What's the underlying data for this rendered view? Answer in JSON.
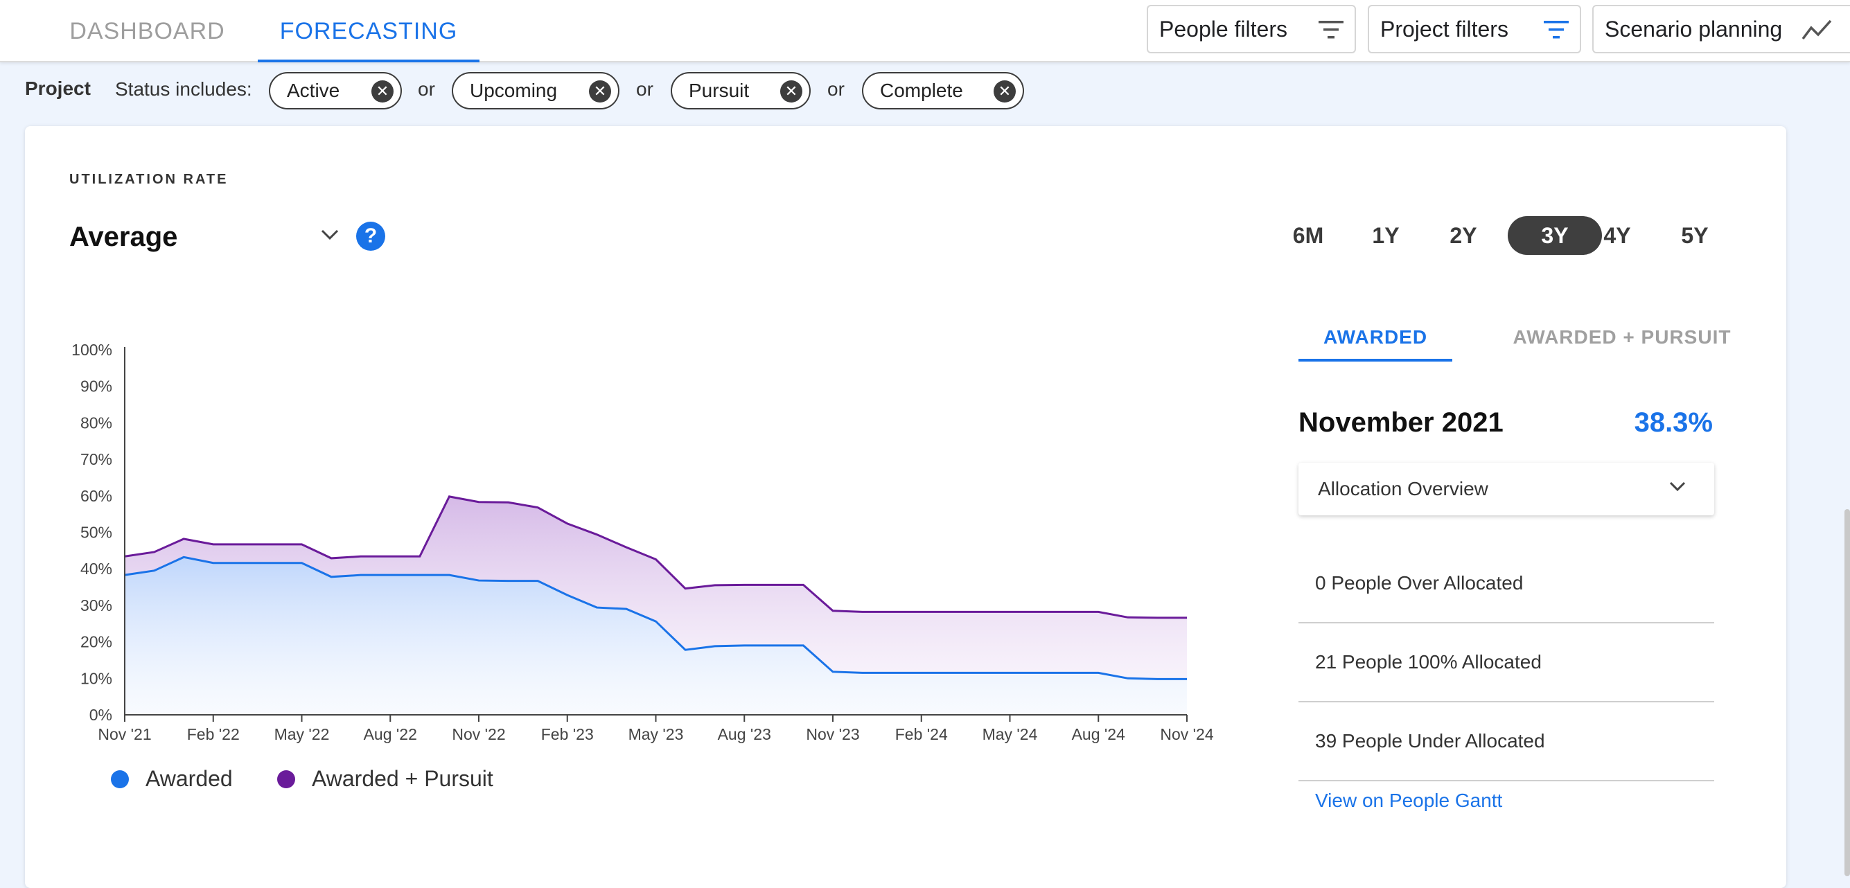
{
  "tabs": [
    {
      "label": "DASHBOARD",
      "active": false
    },
    {
      "label": "FORECASTING",
      "active": true
    }
  ],
  "filters": {
    "people": {
      "label": "People filters",
      "icon": "filter-icon"
    },
    "project": {
      "label": "Project filters",
      "icon": "filter-icon",
      "color": "#1a73e8"
    },
    "scenario": {
      "label": "Scenario planning",
      "icon": "trend-icon"
    }
  },
  "status_filter": {
    "project_label": "Project",
    "status_label": "Status includes:",
    "or_label": "or",
    "chips": [
      "Active",
      "Upcoming",
      "Pursuit",
      "Complete"
    ],
    "chip_remove_icon": "close-circle-icon"
  },
  "card": {
    "title": "UTILIZATION RATE",
    "aggregation": {
      "value": "Average",
      "icon": "chevron-down-icon"
    },
    "help_icon": "help-circle-icon",
    "help_glyph": "?",
    "ranges": [
      "6M",
      "1Y",
      "2Y",
      "3Y",
      "4Y",
      "5Y"
    ],
    "active_range": "3Y"
  },
  "colors": {
    "accent": "#1a73e8",
    "awarded": "#1a73e8",
    "awarded_pursuit": "#6a1b9a"
  },
  "chart_data": {
    "type": "area",
    "x": [
      "Nov '21",
      "Dec '21",
      "Jan '22",
      "Feb '22",
      "Mar '22",
      "Apr '22",
      "May '22",
      "Jun '22",
      "Jul '22",
      "Aug '22",
      "Sep '22",
      "Oct '22",
      "Nov '22",
      "Dec '22",
      "Jan '23",
      "Feb '23",
      "Mar '23",
      "Apr '23",
      "May '23",
      "Jun '23",
      "Jul '23",
      "Aug '23",
      "Sep '23",
      "Oct '23",
      "Nov '23",
      "Dec '23",
      "Jan '24",
      "Feb '24",
      "Mar '24",
      "Apr '24",
      "May '24",
      "Jun '24",
      "Jul '24",
      "Aug '24",
      "Sep '24",
      "Oct '24",
      "Nov '24"
    ],
    "x_tick_labels": [
      "Nov '21",
      "Feb '22",
      "May '22",
      "Aug '22",
      "Nov '22",
      "Feb '23",
      "May '23",
      "Aug '23",
      "Nov '23",
      "Feb '24",
      "May '24",
      "Aug '24",
      "Nov '24"
    ],
    "y_tick_labels": [
      "0%",
      "10%",
      "20%",
      "30%",
      "40%",
      "50%",
      "60%",
      "70%",
      "80%",
      "90%",
      "100%"
    ],
    "ylim": [
      0,
      100
    ],
    "series": [
      {
        "name": "Awarded",
        "values": [
          38.3,
          39.5,
          43.2,
          41.6,
          41.6,
          41.6,
          41.6,
          37.8,
          38.3,
          38.3,
          38.3,
          38.3,
          36.8,
          36.7,
          36.7,
          32.8,
          29.4,
          29.0,
          25.6,
          17.8,
          18.8,
          19.0,
          19.0,
          19.0,
          11.8,
          11.5,
          11.5,
          11.5,
          11.5,
          11.5,
          11.5,
          11.5,
          11.5,
          11.5,
          10.0,
          9.8,
          9.8
        ]
      },
      {
        "name": "Awarded + Pursuit",
        "values": [
          43.4,
          44.6,
          48.2,
          46.7,
          46.7,
          46.7,
          46.7,
          42.9,
          43.4,
          43.4,
          43.4,
          59.8,
          58.3,
          58.2,
          56.8,
          52.4,
          49.4,
          45.9,
          42.6,
          34.6,
          35.5,
          35.6,
          35.6,
          35.6,
          28.5,
          28.2,
          28.2,
          28.2,
          28.2,
          28.2,
          28.2,
          28.2,
          28.2,
          28.2,
          26.7,
          26.6,
          26.6
        ]
      }
    ],
    "grid": false,
    "legend": "bottom-left"
  },
  "legend": [
    {
      "label": "Awarded",
      "color": "#1a73e8"
    },
    {
      "label": "Awarded + Pursuit",
      "color": "#6a1b9a"
    }
  ],
  "panel": {
    "tabs": [
      {
        "label": "AWARDED",
        "active": true
      },
      {
        "label": "AWARDED + PURSUIT",
        "active": false
      }
    ],
    "month": "November 2021",
    "rate": "38.3%",
    "select": {
      "label": "Allocation Overview",
      "icon": "chevron-down-icon"
    },
    "items": [
      "0 People Over Allocated",
      "21 People 100% Allocated",
      "39 People Under Allocated"
    ],
    "link": "View on People Gantt"
  }
}
